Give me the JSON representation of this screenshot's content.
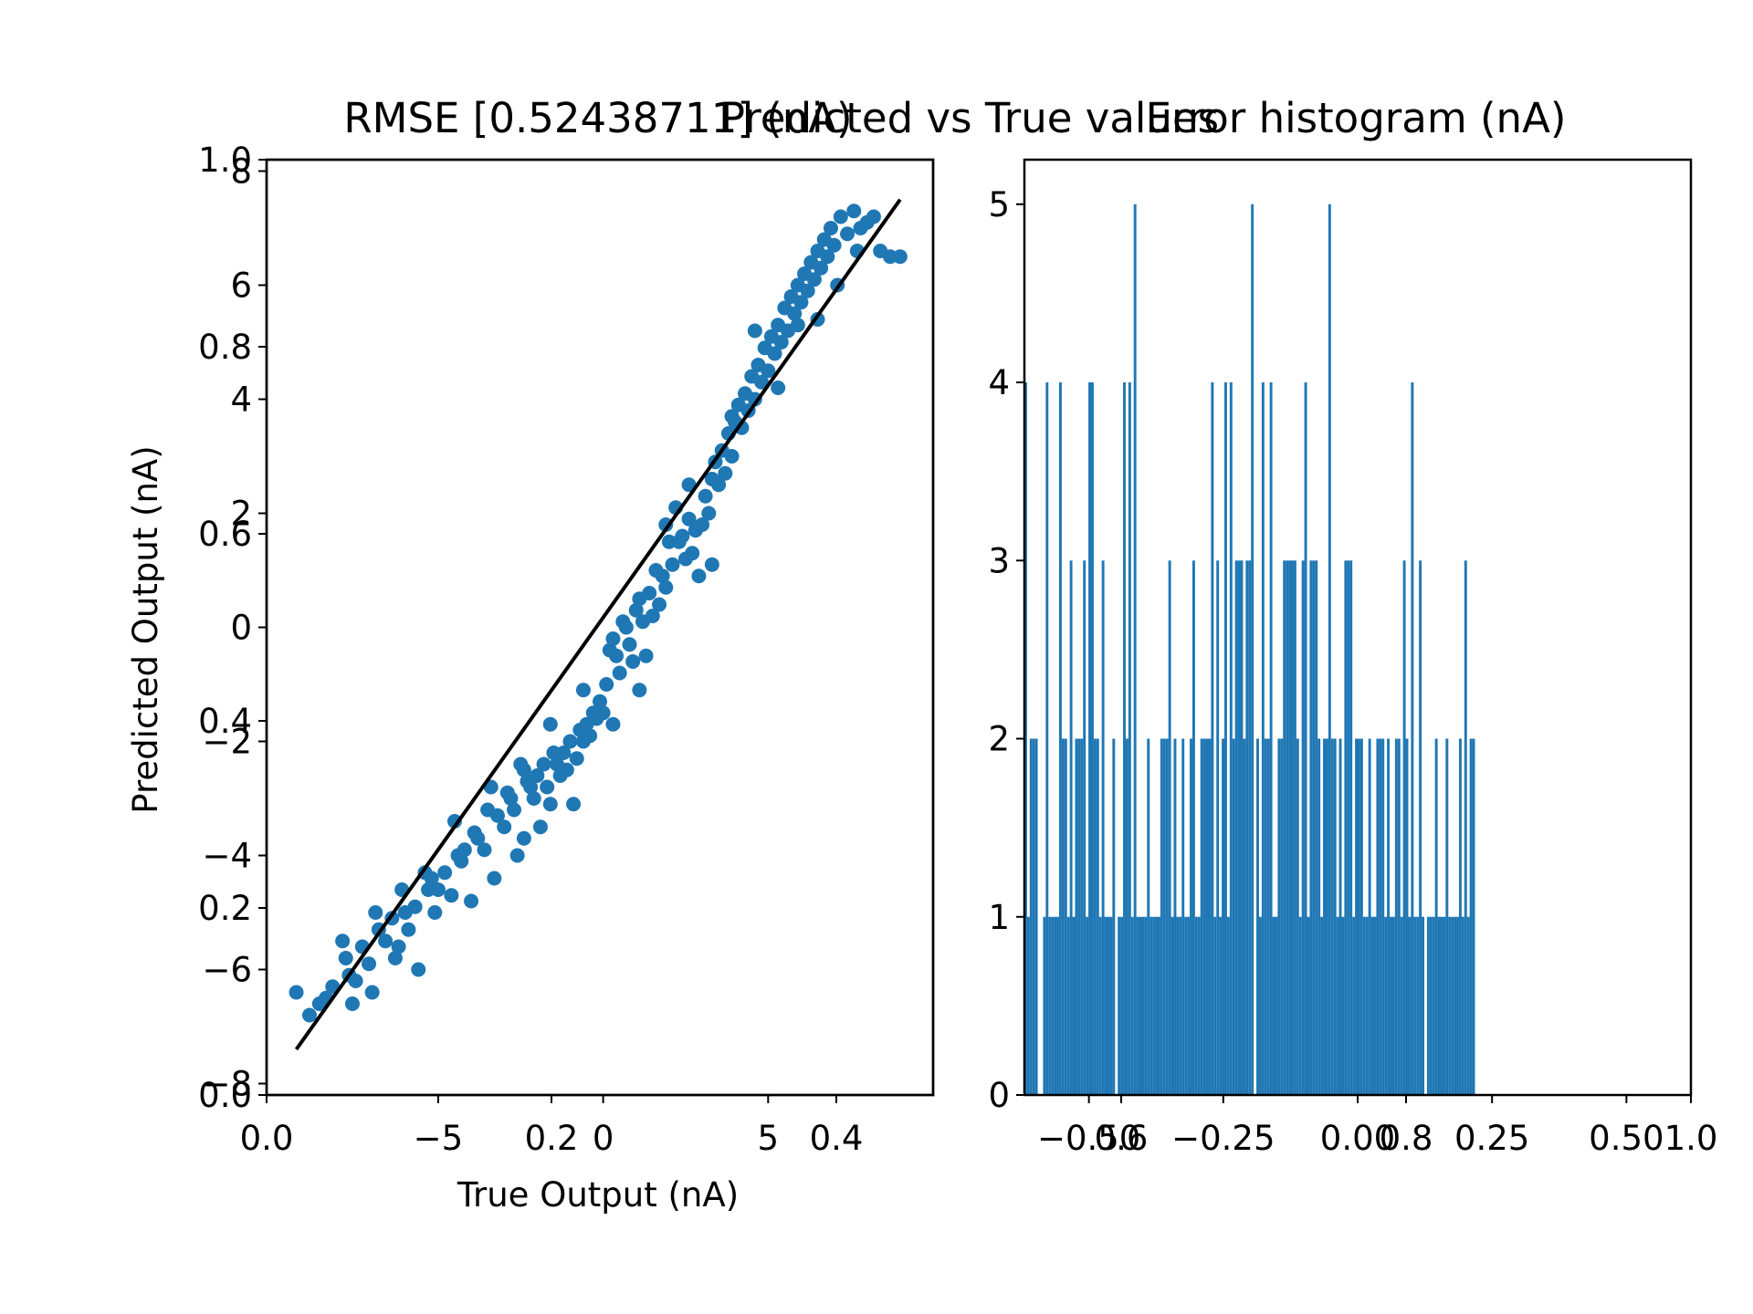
{
  "figure": {
    "colors": {
      "marker": "#1f77b4",
      "bar": "#1f77b4",
      "line": "#000000",
      "axes": "#000000",
      "background": "#ffffff"
    }
  },
  "chart_data": [
    {
      "type": "axes",
      "role": "overlay-base",
      "title": "RMSE [0.52438711] (nA)",
      "xlim": [
        0.0,
        1.0
      ],
      "ylim": [
        0.0,
        1.0
      ],
      "x_ticks": [
        0.0,
        0.2,
        0.4
      ],
      "x_tick_labels": [
        "0.0",
        "0.2",
        "0.4"
      ],
      "y_ticks": [
        0.0,
        0.2,
        0.4,
        0.6,
        0.8,
        1.0
      ],
      "y_tick_labels": [
        "0.0",
        "0.2",
        "0.4",
        "0.6",
        "0.8",
        "1.0"
      ]
    },
    {
      "type": "scatter",
      "title": "Predicted vs True values",
      "xlabel": "True Output (nA)",
      "ylabel": "Predicted Output (nA)",
      "xlim": [
        -10.2,
        10.0
      ],
      "ylim": [
        -8.2,
        8.2
      ],
      "x_ticks": [
        -5,
        0,
        5
      ],
      "x_tick_labels": [
        "−5",
        "0",
        "5"
      ],
      "y_ticks": [
        -8,
        -6,
        -4,
        -2,
        0,
        2,
        4,
        6,
        8
      ],
      "y_tick_labels": [
        "−8",
        "−6",
        "−4",
        "−2",
        "0",
        "2",
        "4",
        "6",
        "8"
      ],
      "ideal_line": {
        "x": [
          -9.3,
          9.0
        ],
        "y": [
          -7.4,
          7.5
        ]
      },
      "points": [
        [
          -9.3,
          -6.4
        ],
        [
          -8.9,
          -6.8
        ],
        [
          -8.6,
          -6.6
        ],
        [
          -8.4,
          -6.5
        ],
        [
          -8.2,
          -6.3
        ],
        [
          -7.9,
          -5.5
        ],
        [
          -7.8,
          -5.8
        ],
        [
          -7.7,
          -6.1
        ],
        [
          -7.6,
          -6.6
        ],
        [
          -7.5,
          -6.2
        ],
        [
          -7.3,
          -5.6
        ],
        [
          -7.1,
          -5.9
        ],
        [
          -7.0,
          -6.4
        ],
        [
          -6.8,
          -5.3
        ],
        [
          -6.6,
          -5.5
        ],
        [
          -6.4,
          -5.1
        ],
        [
          -6.3,
          -5.8
        ],
        [
          -6.2,
          -5.6
        ],
        [
          -6.0,
          -5.0
        ],
        [
          -5.9,
          -5.3
        ],
        [
          -5.7,
          -4.9
        ],
        [
          -5.6,
          -6.0
        ],
        [
          -5.4,
          -4.3
        ],
        [
          -5.3,
          -4.6
        ],
        [
          -5.2,
          -4.4
        ],
        [
          -5.0,
          -4.6
        ],
        [
          -4.8,
          -4.3
        ],
        [
          -4.6,
          -4.7
        ],
        [
          -4.5,
          -3.4
        ],
        [
          -4.3,
          -4.1
        ],
        [
          -4.2,
          -3.9
        ],
        [
          -4.0,
          -4.8
        ],
        [
          -3.9,
          -3.6
        ],
        [
          -3.8,
          -3.7
        ],
        [
          -3.6,
          -3.9
        ],
        [
          -3.5,
          -3.2
        ],
        [
          -3.3,
          -4.4
        ],
        [
          -3.2,
          -3.3
        ],
        [
          -3.0,
          -3.5
        ],
        [
          -2.9,
          -2.9
        ],
        [
          -2.8,
          -3.0
        ],
        [
          -2.7,
          -3.2
        ],
        [
          -2.6,
          -4.0
        ],
        [
          -2.5,
          -2.4
        ],
        [
          -2.4,
          -2.5
        ],
        [
          -2.3,
          -2.7
        ],
        [
          -2.2,
          -2.8
        ],
        [
          -2.1,
          -3.0
        ],
        [
          -2.0,
          -2.6
        ],
        [
          -1.9,
          -3.5
        ],
        [
          -1.8,
          -2.4
        ],
        [
          -1.7,
          -2.8
        ],
        [
          -1.6,
          -3.1
        ],
        [
          -1.5,
          -2.2
        ],
        [
          -1.4,
          -2.4
        ],
        [
          -1.3,
          -2.6
        ],
        [
          -1.2,
          -2.2
        ],
        [
          -1.1,
          -2.5
        ],
        [
          -1.0,
          -2.0
        ],
        [
          -0.9,
          -3.1
        ],
        [
          -0.8,
          -2.3
        ],
        [
          -0.7,
          -1.8
        ],
        [
          -0.6,
          -2.0
        ],
        [
          -0.5,
          -1.7
        ],
        [
          -0.4,
          -1.9
        ],
        [
          -0.3,
          -1.5
        ],
        [
          -0.2,
          -1.6
        ],
        [
          -0.1,
          -1.3
        ],
        [
          0.0,
          -1.5
        ],
        [
          0.1,
          -1.0
        ],
        [
          0.2,
          -0.4
        ],
        [
          0.3,
          -0.2
        ],
        [
          0.4,
          -0.5
        ],
        [
          0.5,
          -0.8
        ],
        [
          0.6,
          0.1
        ],
        [
          0.7,
          0.0
        ],
        [
          0.8,
          -0.3
        ],
        [
          0.9,
          -0.6
        ],
        [
          1.0,
          0.3
        ],
        [
          1.1,
          -1.1
        ],
        [
          1.2,
          0.1
        ],
        [
          1.3,
          -0.5
        ],
        [
          1.4,
          0.6
        ],
        [
          1.5,
          0.2
        ],
        [
          1.6,
          1.0
        ],
        [
          1.7,
          0.4
        ],
        [
          1.8,
          0.9
        ],
        [
          1.9,
          0.7
        ],
        [
          2.0,
          1.5
        ],
        [
          2.1,
          1.1
        ],
        [
          2.2,
          2.1
        ],
        [
          2.3,
          1.5
        ],
        [
          2.4,
          1.6
        ],
        [
          2.5,
          1.2
        ],
        [
          2.6,
          1.9
        ],
        [
          2.7,
          1.3
        ],
        [
          2.8,
          1.7
        ],
        [
          2.9,
          0.9
        ],
        [
          3.0,
          1.8
        ],
        [
          3.1,
          2.3
        ],
        [
          3.2,
          2.0
        ],
        [
          3.3,
          2.6
        ],
        [
          3.4,
          2.9
        ],
        [
          3.5,
          2.5
        ],
        [
          3.6,
          3.1
        ],
        [
          3.7,
          2.7
        ],
        [
          3.8,
          3.4
        ],
        [
          3.9,
          3.0
        ],
        [
          4.0,
          3.6
        ],
        [
          4.1,
          3.9
        ],
        [
          4.2,
          3.5
        ],
        [
          4.3,
          4.1
        ],
        [
          4.4,
          3.8
        ],
        [
          4.5,
          4.4
        ],
        [
          4.6,
          4.0
        ],
        [
          4.7,
          4.6
        ],
        [
          4.8,
          4.3
        ],
        [
          4.9,
          4.9
        ],
        [
          5.0,
          4.5
        ],
        [
          5.1,
          5.1
        ],
        [
          5.2,
          4.8
        ],
        [
          5.3,
          5.3
        ],
        [
          5.4,
          5.0
        ],
        [
          5.5,
          5.6
        ],
        [
          5.6,
          5.2
        ],
        [
          5.7,
          5.8
        ],
        [
          5.8,
          5.5
        ],
        [
          5.9,
          6.0
        ],
        [
          6.0,
          5.7
        ],
        [
          6.1,
          6.2
        ],
        [
          6.2,
          5.9
        ],
        [
          6.3,
          6.4
        ],
        [
          6.4,
          6.1
        ],
        [
          6.5,
          6.6
        ],
        [
          6.6,
          6.3
        ],
        [
          6.7,
          6.8
        ],
        [
          6.8,
          6.5
        ],
        [
          6.9,
          7.0
        ],
        [
          7.0,
          6.7
        ],
        [
          7.2,
          7.2
        ],
        [
          7.4,
          6.9
        ],
        [
          7.6,
          7.3
        ],
        [
          7.8,
          7.0
        ],
        [
          8.0,
          7.1
        ],
        [
          8.2,
          7.2
        ],
        [
          8.4,
          6.6
        ],
        [
          8.7,
          6.5
        ],
        [
          9.0,
          6.5
        ],
        [
          -6.9,
          -5.0
        ],
        [
          -6.1,
          -4.6
        ],
        [
          -5.1,
          -5.0
        ],
        [
          -4.4,
          -4.0
        ],
        [
          -3.4,
          -2.8
        ],
        [
          -2.4,
          -3.7
        ],
        [
          -1.6,
          -1.7
        ],
        [
          -0.6,
          -1.1
        ],
        [
          0.3,
          -1.7
        ],
        [
          1.1,
          0.5
        ],
        [
          1.9,
          1.8
        ],
        [
          2.6,
          2.5
        ],
        [
          3.3,
          1.1
        ],
        [
          3.9,
          3.7
        ],
        [
          4.6,
          5.2
        ],
        [
          5.3,
          4.2
        ],
        [
          5.9,
          5.3
        ],
        [
          6.5,
          5.4
        ],
        [
          7.1,
          6.0
        ],
        [
          7.7,
          6.6
        ]
      ]
    },
    {
      "type": "bar",
      "title": "Error histogram (nA)",
      "xlim": [
        -0.62,
        0.62
      ],
      "ylim": [
        0,
        5.25
      ],
      "x_ticks": [
        -0.5,
        -0.25,
        0.0,
        0.25,
        0.5
      ],
      "x_tick_labels": [
        "−0.50",
        "−0.25",
        "0.00",
        "0.25",
        "0.50"
      ],
      "y_ticks": [
        0,
        1,
        2,
        3,
        4,
        5
      ],
      "y_tick_labels": [
        "0",
        "1",
        "2",
        "3",
        "4",
        "5"
      ],
      "bins_start": -0.62,
      "bin_width": 0.00496,
      "counts": [
        4,
        1,
        2,
        2,
        2,
        0,
        0,
        1,
        4,
        1,
        1,
        1,
        1,
        4,
        2,
        2,
        1,
        3,
        1,
        2,
        2,
        2,
        3,
        1,
        4,
        4,
        2,
        2,
        1,
        3,
        1,
        1,
        1,
        2,
        0,
        1,
        1,
        4,
        2,
        4,
        1,
        5,
        1,
        1,
        1,
        1,
        2,
        1,
        1,
        1,
        1,
        2,
        2,
        2,
        3,
        1,
        2,
        1,
        1,
        2,
        1,
        1,
        2,
        3,
        1,
        1,
        2,
        2,
        2,
        2,
        4,
        1,
        3,
        1,
        2,
        4,
        1,
        4,
        2,
        3,
        3,
        3,
        2,
        3,
        3,
        5,
        0,
        2,
        1,
        4,
        2,
        2,
        4,
        1,
        1,
        2,
        2,
        3,
        3,
        3,
        3,
        3,
        2,
        1,
        3,
        4,
        1,
        3,
        3,
        3,
        2,
        1,
        2,
        2,
        5,
        2,
        2,
        1,
        2,
        1,
        3,
        3,
        3,
        1,
        2,
        2,
        2,
        1,
        1,
        2,
        1,
        1,
        2,
        2,
        2,
        1,
        2,
        1,
        1,
        2,
        2,
        1,
        3,
        2,
        1,
        4,
        1,
        1,
        3,
        1,
        0,
        1,
        1,
        1,
        2,
        1,
        1,
        1,
        2,
        1,
        1,
        1,
        1,
        2,
        1,
        3,
        1,
        2,
        2
      ]
    },
    {
      "type": "axes",
      "role": "overlay-ticks",
      "x_ticks": [
        0.6,
        0.8,
        1.0
      ],
      "x_tick_labels": [
        "0.6",
        "0.8",
        "1.0"
      ],
      "xlim": [
        0.0,
        1.0
      ]
    }
  ]
}
